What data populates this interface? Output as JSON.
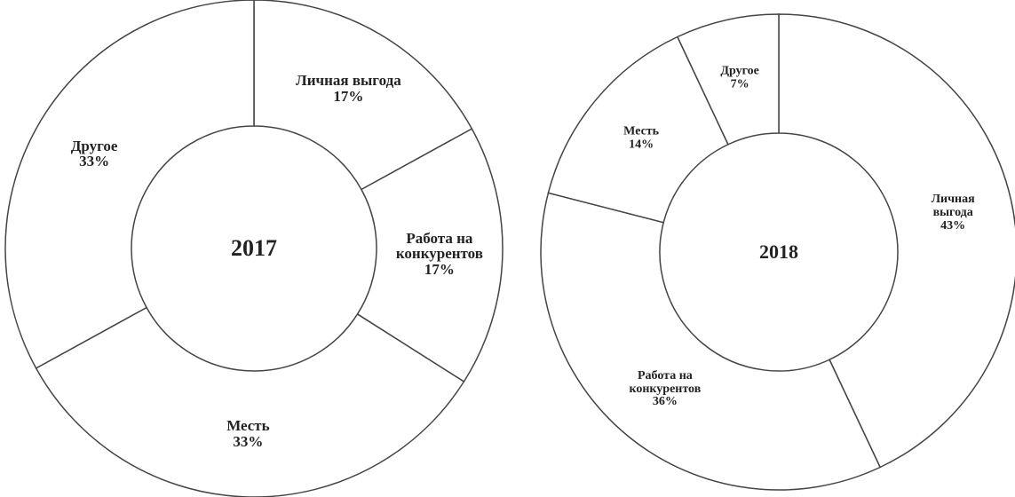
{
  "chart_data": [
    {
      "type": "donut",
      "title": "2017",
      "categories": [
        "Личная выгода",
        "Работа на конкурентов",
        "Месть",
        "Другое"
      ],
      "values": [
        17,
        17,
        33,
        33
      ],
      "value_labels": [
        "17%",
        "17%",
        "33%",
        "33%"
      ]
    },
    {
      "type": "donut",
      "title": "2018",
      "categories": [
        "Личная выгода",
        "Работа на конкурентов",
        "Месть",
        "Другое"
      ],
      "values": [
        43,
        36,
        14,
        7
      ],
      "value_labels": [
        "43%",
        "36%",
        "14%",
        "7%"
      ]
    }
  ]
}
